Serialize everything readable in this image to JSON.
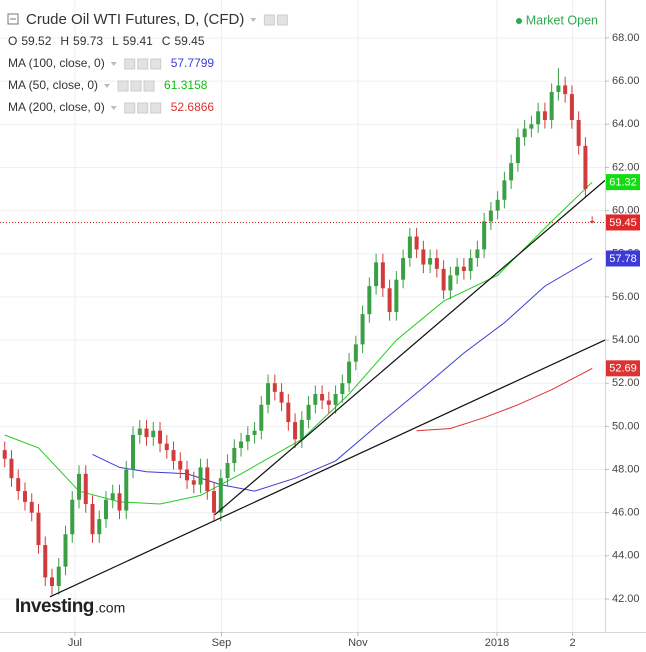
{
  "header": {
    "title": "Crude Oil WTI Futures, D, (CFD)",
    "status": "Market Open",
    "ohlc_labels": [
      "O",
      "H",
      "L",
      "C"
    ]
  },
  "watermark": {
    "brand": "Investing",
    "suffix": ".com"
  },
  "chart_data": {
    "type": "candlestick",
    "up_color": "#3a9f45",
    "down_color": "#d23b3b",
    "open": [
      48.9,
      48.5,
      47.6,
      47.0,
      46.5,
      46.0,
      44.5,
      43.0,
      42.6,
      43.5,
      45.0,
      46.6,
      47.8,
      46.4,
      45.0,
      45.7,
      46.6,
      46.9,
      46.1,
      48.0,
      49.6,
      49.9,
      49.5,
      49.8,
      49.2,
      48.9,
      48.4,
      48.0,
      47.5,
      47.3,
      48.1,
      47.0,
      46.0,
      47.6,
      48.3,
      49.0,
      49.3,
      49.6,
      49.8,
      51.0,
      52.0,
      51.6,
      51.1,
      50.2,
      49.4,
      50.3,
      51.0,
      51.5,
      51.2,
      51.0,
      51.5,
      52.0,
      53.0,
      53.8,
      55.2,
      56.5,
      57.6,
      56.4,
      55.3,
      56.8,
      57.8,
      58.8,
      58.2,
      57.5,
      57.8,
      57.3,
      56.3,
      57.0,
      57.4,
      57.2,
      57.8,
      58.2,
      59.5,
      60.0,
      60.5,
      61.4,
      62.2,
      63.4,
      63.8,
      64.0,
      64.6,
      64.2,
      65.5,
      65.8,
      65.4,
      64.2,
      63.0,
      59.52
    ],
    "high": [
      49.3,
      48.9,
      48.0,
      47.4,
      46.9,
      46.4,
      44.9,
      43.4,
      43.9,
      45.4,
      47.0,
      48.2,
      48.2,
      46.8,
      46.1,
      47.0,
      47.3,
      47.3,
      48.4,
      50.0,
      50.3,
      50.3,
      50.2,
      50.2,
      49.6,
      49.3,
      48.8,
      48.4,
      47.9,
      48.5,
      48.5,
      47.4,
      48.0,
      48.7,
      49.4,
      49.7,
      50.0,
      50.2,
      51.4,
      52.4,
      52.4,
      52.0,
      51.5,
      50.6,
      50.7,
      51.4,
      51.9,
      51.9,
      51.6,
      51.9,
      52.4,
      53.4,
      54.2,
      55.6,
      56.9,
      58.0,
      58.0,
      56.8,
      57.2,
      58.2,
      59.2,
      59.2,
      58.6,
      58.2,
      58.2,
      57.7,
      57.4,
      57.8,
      57.8,
      58.2,
      58.6,
      59.9,
      60.4,
      60.9,
      61.8,
      62.6,
      63.8,
      64.2,
      64.4,
      65.0,
      65.0,
      65.9,
      66.6,
      66.2,
      65.8,
      64.6,
      63.4,
      59.73
    ],
    "low": [
      48.1,
      47.2,
      46.6,
      46.1,
      45.6,
      44.1,
      42.6,
      42.2,
      42.2,
      43.1,
      44.6,
      46.2,
      46.0,
      44.6,
      44.6,
      45.3,
      46.2,
      45.7,
      45.7,
      47.6,
      49.2,
      49.1,
      49.1,
      48.8,
      48.5,
      48.0,
      47.6,
      47.1,
      46.9,
      46.9,
      46.6,
      45.6,
      45.6,
      47.2,
      47.9,
      48.6,
      48.9,
      49.2,
      49.4,
      50.6,
      51.2,
      50.7,
      49.8,
      49.0,
      49.0,
      49.9,
      50.6,
      50.8,
      50.6,
      50.6,
      51.1,
      51.6,
      52.6,
      53.4,
      54.8,
      56.1,
      56.0,
      54.9,
      54.9,
      56.4,
      57.4,
      57.8,
      57.1,
      57.1,
      56.9,
      55.9,
      55.9,
      56.6,
      56.8,
      56.8,
      57.4,
      57.8,
      59.1,
      59.6,
      60.1,
      61.0,
      61.8,
      63.0,
      63.4,
      63.6,
      63.8,
      63.8,
      65.1,
      65.0,
      63.8,
      62.6,
      60.6,
      59.41
    ],
    "close": [
      48.5,
      47.6,
      47.0,
      46.5,
      46.0,
      44.5,
      43.0,
      42.6,
      43.5,
      45.0,
      46.6,
      47.8,
      46.4,
      45.0,
      45.7,
      46.6,
      46.9,
      46.1,
      48.0,
      49.6,
      49.9,
      49.5,
      49.8,
      49.2,
      48.9,
      48.4,
      48.0,
      47.5,
      47.3,
      48.1,
      47.0,
      46.0,
      47.6,
      48.3,
      49.0,
      49.3,
      49.6,
      49.8,
      51.0,
      52.0,
      51.6,
      51.1,
      50.2,
      49.4,
      50.3,
      51.0,
      51.5,
      51.2,
      51.0,
      51.5,
      52.0,
      53.0,
      53.8,
      55.2,
      56.5,
      57.6,
      56.4,
      55.3,
      56.8,
      57.8,
      58.8,
      58.2,
      57.5,
      57.8,
      57.3,
      56.3,
      57.0,
      57.4,
      57.2,
      57.8,
      58.2,
      59.5,
      60.0,
      60.5,
      61.4,
      62.2,
      63.4,
      63.8,
      64.0,
      64.6,
      64.2,
      65.5,
      65.8,
      65.4,
      64.2,
      63.0,
      61.0,
      59.45
    ],
    "xlim": [
      -0.7,
      88.9
    ],
    "xticks": [
      {
        "value": 10.4,
        "label": "Jul"
      },
      {
        "value": 32.1,
        "label": "Sep"
      },
      {
        "value": 52.3,
        "label": "Nov"
      },
      {
        "value": 72.9,
        "label": "2018"
      },
      {
        "value": 84.1,
        "label": "2"
      }
    ],
    "ylim": [
      40.47,
      69.76
    ],
    "yticks": [
      {
        "value": 42,
        "label": "42.00"
      },
      {
        "value": 44,
        "label": "44.00"
      },
      {
        "value": 46,
        "label": "46.00"
      },
      {
        "value": 48,
        "label": "48.00"
      },
      {
        "value": 50,
        "label": "50.00"
      },
      {
        "value": 52,
        "label": "52.00"
      },
      {
        "value": 54,
        "label": "54.00"
      },
      {
        "value": 56,
        "label": "56.00"
      },
      {
        "value": 58,
        "label": "58.00"
      },
      {
        "value": 60,
        "label": "60.00"
      },
      {
        "value": 62,
        "label": "62.00"
      },
      {
        "value": 64,
        "label": "64.00"
      },
      {
        "value": 66,
        "label": "66.00"
      },
      {
        "value": 68,
        "label": "68.00"
      }
    ],
    "grid": true,
    "series": [
      {
        "name": "MA (100, close, 0)",
        "color": "#3b3bd6",
        "legend_value": 57.7799,
        "badge": 57.78,
        "x": [
          13,
          17,
          21,
          27,
          32,
          37,
          43,
          49,
          55,
          62,
          68,
          74,
          80,
          87
        ],
        "values": [
          48.7,
          48.1,
          47.9,
          47.8,
          47.3,
          47.0,
          47.6,
          48.4,
          50.0,
          51.8,
          53.4,
          54.8,
          56.5,
          57.7799
        ]
      },
      {
        "name": "MA (50, close, 0)",
        "color": "#22cc22",
        "legend_value": 61.3158,
        "badge": 61.32,
        "x": [
          0,
          5,
          11,
          17,
          23,
          29,
          35,
          44,
          51,
          58,
          65,
          73,
          81,
          87
        ],
        "values": [
          49.6,
          49.0,
          47.0,
          46.5,
          46.4,
          46.8,
          47.8,
          49.4,
          51.5,
          54.0,
          55.8,
          57.0,
          59.5,
          61.3158
        ]
      },
      {
        "name": "MA (200, close, 0)",
        "color": "#dd3333",
        "legend_value": 52.6866,
        "badge": 52.69,
        "x": [
          61,
          66,
          71,
          76,
          81,
          87
        ],
        "values": [
          49.8,
          49.9,
          50.4,
          51.0,
          51.7,
          52.6866
        ]
      }
    ],
    "trendlines": [
      {
        "x": [
          6.7,
          88.9
        ],
        "y": [
          42.1,
          54.0
        ]
      },
      {
        "x": [
          31.1,
          88.9
        ],
        "y": [
          45.9,
          61.4
        ]
      }
    ]
  }
}
